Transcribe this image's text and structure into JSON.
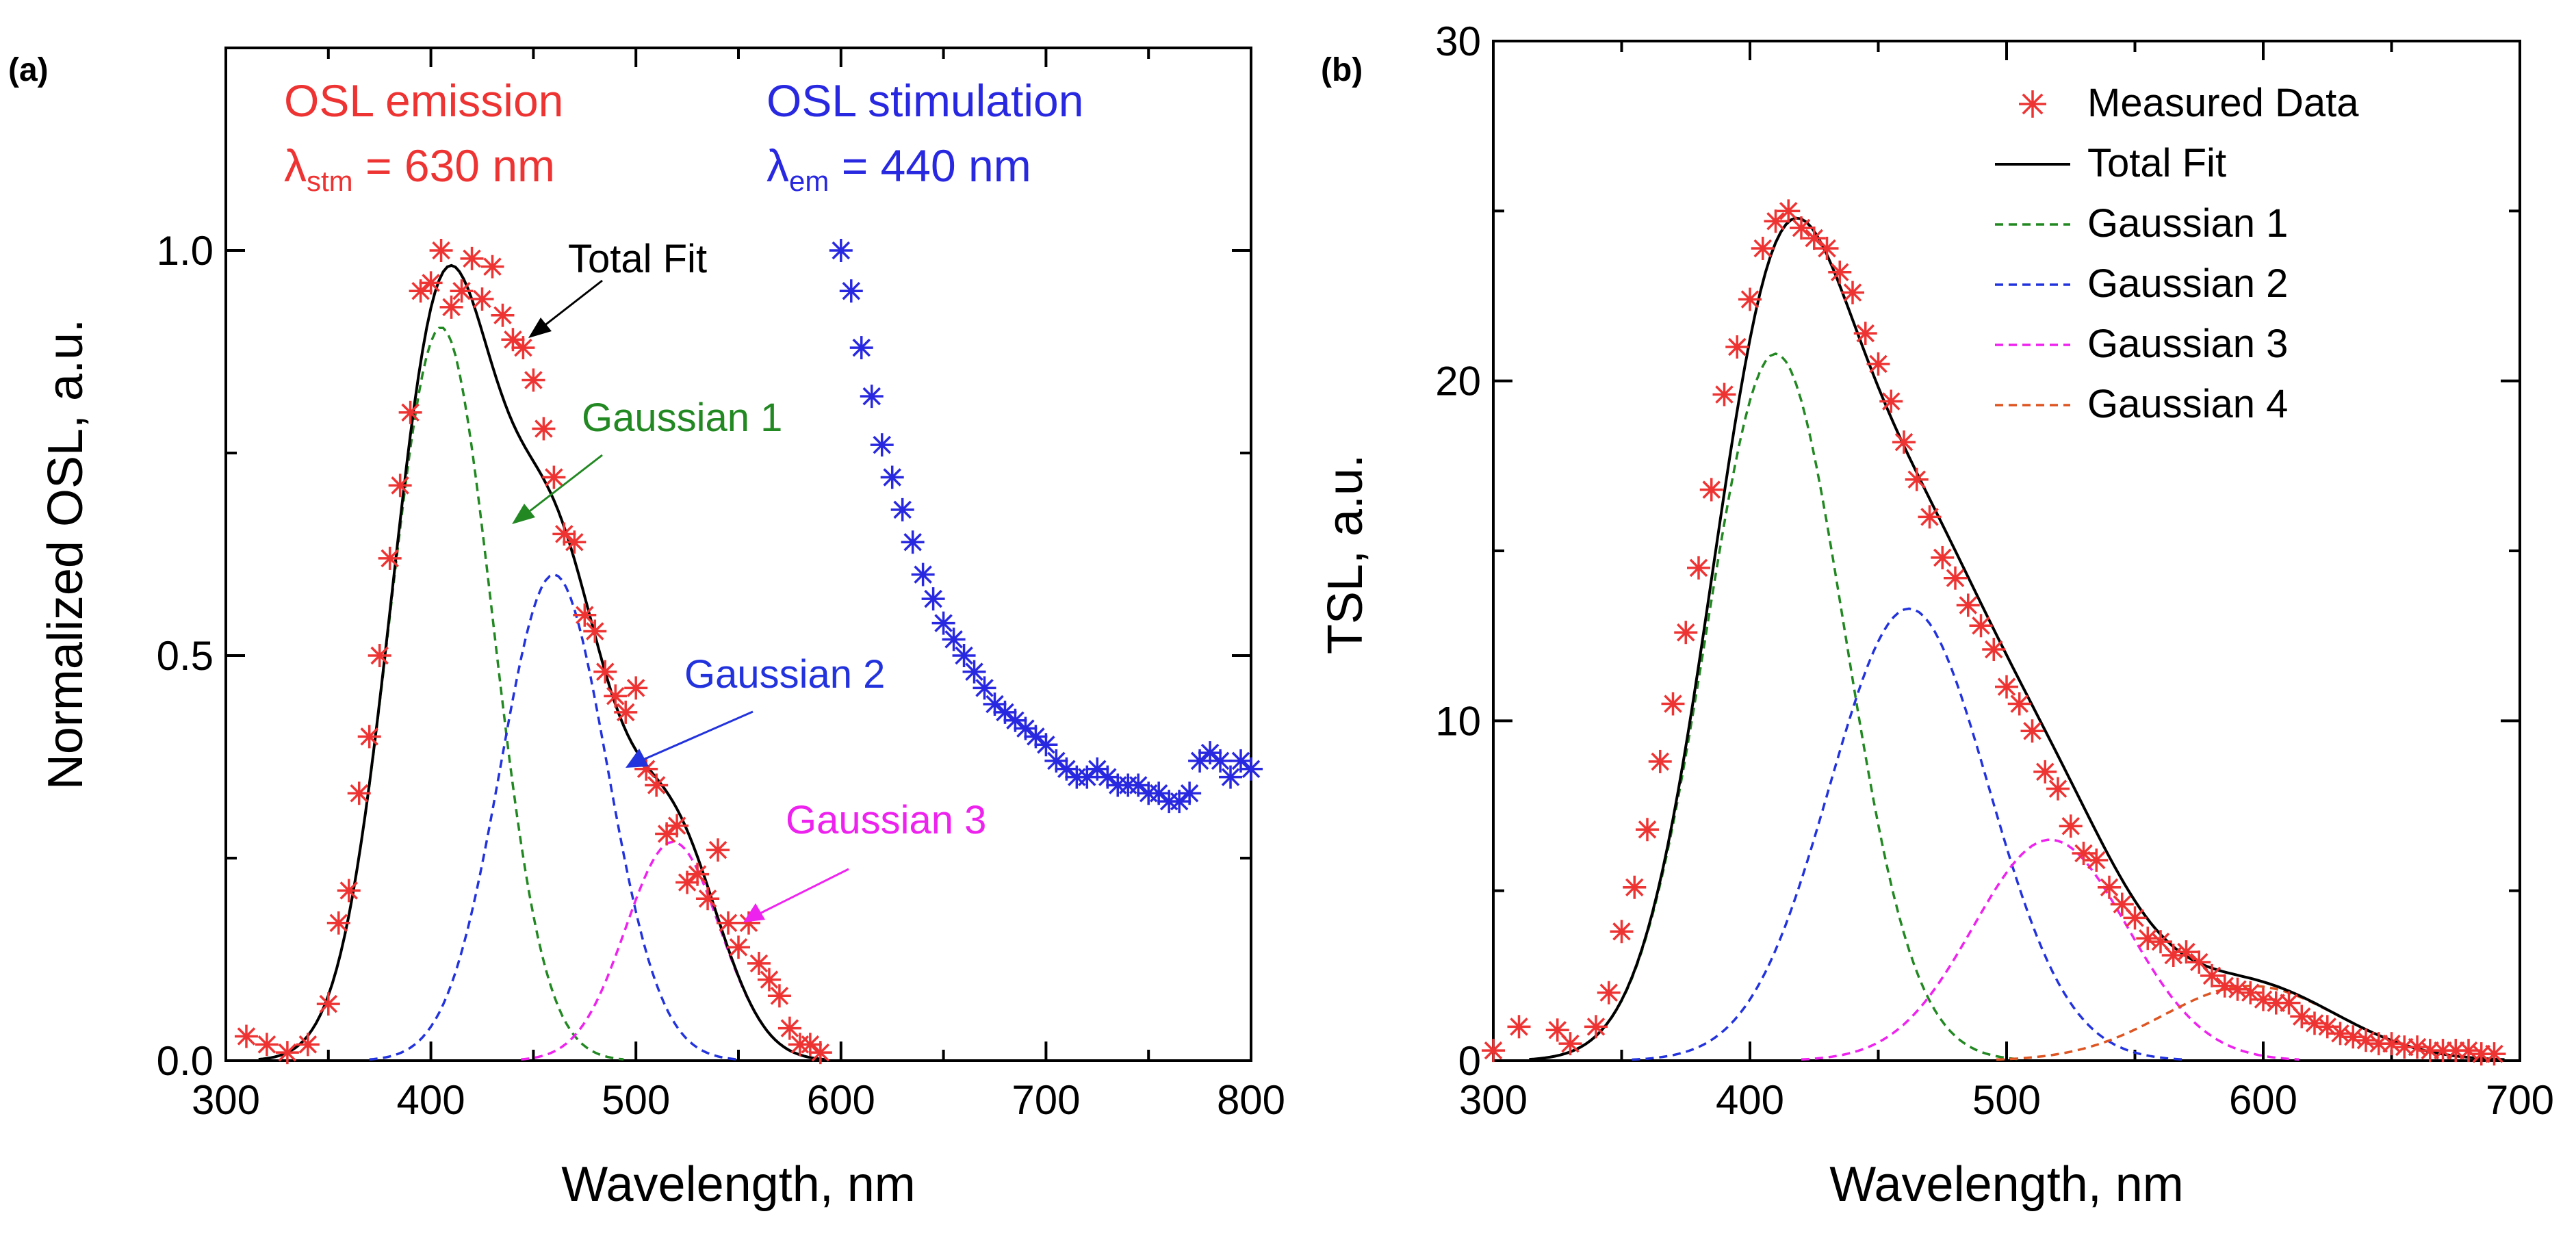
{
  "chart_data": [
    {
      "panel_label": "(a)",
      "type": "line",
      "title": "",
      "xlabel": "Wavelength, nm",
      "ylabel": "Normalized OSL, a.u.",
      "xlim": [
        300,
        800
      ],
      "ylim": [
        0,
        1.25
      ],
      "xticks": [
        "300",
        "400",
        "500",
        "600",
        "700",
        "800"
      ],
      "yticks": [
        "0.0",
        "0.5",
        "1.0"
      ],
      "ytick_values": [
        0,
        0.5,
        1.0
      ],
      "grid": false,
      "colors": {
        "measured": "#ee3333",
        "stim": "#2828e0",
        "fit": "#000000",
        "g1": "#228822",
        "g2": "#2233dd",
        "g3": "#ee22ee"
      },
      "annotations": {
        "emission_title": "OSL emission",
        "emission_lambda": "λ",
        "emission_sub": "stm",
        "emission_value": " = 630 nm",
        "stim_title": "OSL stimulation",
        "stim_lambda": "λ",
        "stim_sub": "em",
        "stim_value": " = 440 nm",
        "total_fit": "Total Fit",
        "gaussian1": "Gaussian 1",
        "gaussian2": "Gaussian 2",
        "gaussian3": "Gaussian 3"
      },
      "series": [
        {
          "name": "OSL emission (measured)",
          "marker": "asterisk",
          "color": "#ee3333",
          "x": [
            310,
            320,
            330,
            340,
            350,
            355,
            360,
            365,
            370,
            375,
            380,
            385,
            390,
            395,
            400,
            405,
            410,
            415,
            420,
            425,
            430,
            435,
            440,
            445,
            450,
            455,
            460,
            465,
            470,
            475,
            480,
            485,
            490,
            495,
            500,
            505,
            510,
            515,
            520,
            525,
            530,
            535,
            540,
            545,
            550,
            555,
            560,
            565,
            570,
            575,
            580,
            585,
            590
          ],
          "y": [
            0.03,
            0.02,
            0.01,
            0.02,
            0.07,
            0.17,
            0.21,
            0.33,
            0.4,
            0.5,
            0.62,
            0.71,
            0.8,
            0.95,
            0.96,
            1.0,
            0.93,
            0.95,
            0.99,
            0.94,
            0.98,
            0.92,
            0.89,
            0.88,
            0.84,
            0.78,
            0.72,
            0.65,
            0.64,
            0.55,
            0.53,
            0.48,
            0.45,
            0.43,
            0.46,
            0.36,
            0.34,
            0.28,
            0.29,
            0.22,
            0.23,
            0.2,
            0.26,
            0.17,
            0.14,
            0.17,
            0.12,
            0.1,
            0.08,
            0.04,
            0.02,
            0.02,
            0.01
          ]
        },
        {
          "name": "OSL stimulation (measured)",
          "marker": "asterisk",
          "color": "#2828e0",
          "x": [
            600,
            605,
            610,
            615,
            620,
            625,
            630,
            635,
            640,
            645,
            650,
            655,
            660,
            665,
            670,
            675,
            680,
            685,
            690,
            695,
            700,
            705,
            710,
            715,
            720,
            725,
            730,
            735,
            740,
            745,
            750,
            755,
            760,
            765,
            770,
            775,
            780,
            785,
            790,
            795,
            800
          ],
          "y": [
            1.0,
            0.95,
            0.88,
            0.82,
            0.76,
            0.72,
            0.68,
            0.64,
            0.6,
            0.57,
            0.54,
            0.52,
            0.5,
            0.48,
            0.46,
            0.44,
            0.43,
            0.42,
            0.41,
            0.4,
            0.39,
            0.37,
            0.36,
            0.35,
            0.35,
            0.36,
            0.35,
            0.34,
            0.34,
            0.34,
            0.33,
            0.33,
            0.32,
            0.32,
            0.33,
            0.37,
            0.38,
            0.37,
            0.35,
            0.37,
            0.36
          ]
        },
        {
          "name": "Total Fit",
          "line": "solid",
          "color": "#000000",
          "components": [
            "g1",
            "g2",
            "g3"
          ]
        },
        {
          "name": "Gaussian 1",
          "line": "dashed",
          "color": "#228822",
          "id": "g1",
          "amplitude": 0.905,
          "center": 405,
          "sigma": 25
        },
        {
          "name": "Gaussian 2",
          "line": "dashed",
          "color": "#2233dd",
          "id": "g2",
          "amplitude": 0.6,
          "center": 460,
          "sigma": 26
        },
        {
          "name": "Gaussian 3",
          "line": "dashed",
          "color": "#ee22ee",
          "id": "g3",
          "amplitude": 0.27,
          "center": 518,
          "sigma": 23
        }
      ]
    },
    {
      "panel_label": "(b)",
      "type": "line",
      "title": "",
      "xlabel": "Wavelength, nm",
      "ylabel": "TSL, a.u.",
      "xlim": [
        300,
        700
      ],
      "ylim": [
        0,
        30
      ],
      "xticks": [
        "300",
        "400",
        "500",
        "600",
        "700"
      ],
      "yticks": [
        "0",
        "10",
        "20",
        "30"
      ],
      "ytick_values": [
        0,
        10,
        20,
        30
      ],
      "grid": false,
      "legend": {
        "position": "top-right",
        "entries": [
          "Measured Data",
          "Total Fit",
          "Gaussian 1",
          "Gaussian 2",
          "Gaussian 3",
          "Gaussian 4"
        ]
      },
      "colors": {
        "measured": "#ee3333",
        "fit": "#000000",
        "g1": "#228822",
        "g2": "#2233dd",
        "g3": "#ee22ee",
        "g4": "#dd5522"
      },
      "series": [
        {
          "name": "Measured Data",
          "marker": "asterisk",
          "color": "#ee3333",
          "x": [
            300,
            310,
            325,
            330,
            340,
            345,
            350,
            355,
            360,
            365,
            370,
            375,
            380,
            385,
            390,
            395,
            400,
            405,
            410,
            415,
            420,
            425,
            430,
            435,
            440,
            445,
            450,
            455,
            460,
            465,
            470,
            475,
            480,
            485,
            490,
            495,
            500,
            505,
            510,
            515,
            520,
            525,
            530,
            535,
            540,
            545,
            550,
            555,
            560,
            565,
            570,
            575,
            580,
            585,
            590,
            595,
            600,
            605,
            610,
            615,
            620,
            625,
            630,
            635,
            640,
            645,
            650,
            655,
            660,
            665,
            670,
            675,
            680,
            685,
            690
          ],
          "y": [
            0.3,
            1.0,
            0.9,
            0.5,
            1.0,
            2.0,
            3.8,
            5.1,
            6.8,
            8.8,
            10.5,
            12.6,
            14.5,
            16.8,
            19.6,
            21.0,
            22.4,
            23.9,
            24.7,
            25.0,
            24.5,
            24.2,
            23.9,
            23.2,
            22.6,
            21.4,
            20.5,
            19.4,
            18.2,
            17.1,
            16.0,
            14.8,
            14.2,
            13.4,
            12.8,
            12.1,
            11.0,
            10.5,
            9.7,
            8.5,
            8.0,
            6.9,
            6.1,
            5.9,
            5.1,
            4.6,
            4.2,
            3.6,
            3.5,
            3.1,
            3.2,
            2.9,
            2.5,
            2.2,
            2.1,
            2.0,
            1.8,
            1.7,
            1.7,
            1.3,
            1.1,
            1.0,
            0.8,
            0.7,
            0.6,
            0.5,
            0.5,
            0.4,
            0.4,
            0.3,
            0.3,
            0.3,
            0.3,
            0.2,
            0.2
          ]
        },
        {
          "name": "Total Fit",
          "line": "solid",
          "color": "#000000",
          "components": [
            "g1",
            "g2",
            "g3",
            "g4"
          ]
        },
        {
          "name": "Gaussian 1",
          "line": "dashed",
          "color": "#228822",
          "id": "g1",
          "amplitude": 20.8,
          "center": 410,
          "sigma": 27
        },
        {
          "name": "Gaussian 2",
          "line": "dashed",
          "color": "#2233dd",
          "id": "g2",
          "amplitude": 13.3,
          "center": 462,
          "sigma": 31
        },
        {
          "name": "Gaussian 3",
          "line": "dashed",
          "color": "#ee22ee",
          "id": "g3",
          "amplitude": 6.5,
          "center": 517,
          "sigma": 30
        },
        {
          "name": "Gaussian 4",
          "line": "dashed",
          "color": "#dd5522",
          "id": "g4",
          "amplitude": 2.2,
          "center": 595,
          "sigma": 34
        }
      ]
    }
  ]
}
